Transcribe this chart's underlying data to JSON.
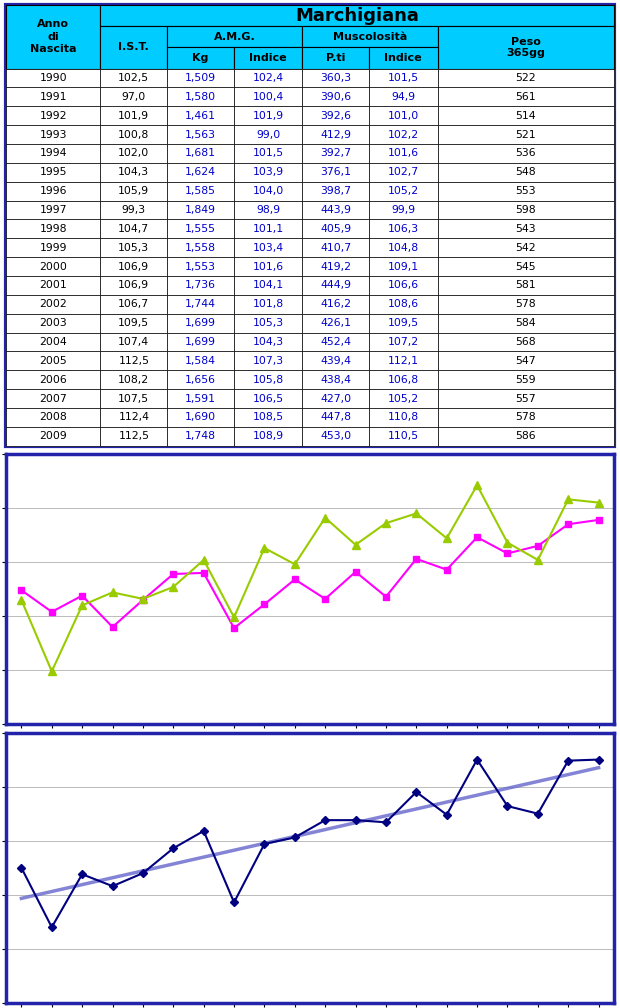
{
  "years": [
    1990,
    1991,
    1992,
    1993,
    1994,
    1995,
    1996,
    1997,
    1998,
    1999,
    2000,
    2001,
    2002,
    2003,
    2004,
    2005,
    2006,
    2007,
    2008,
    2009
  ],
  "IST": [
    102.5,
    97.0,
    101.9,
    100.8,
    102.0,
    104.3,
    105.9,
    99.3,
    104.7,
    105.3,
    106.9,
    106.9,
    106.7,
    109.5,
    107.4,
    112.5,
    108.2,
    107.5,
    112.4,
    112.5
  ],
  "AMG_kg": [
    1.509,
    1.58,
    1.461,
    1.563,
    1.681,
    1.624,
    1.585,
    1.849,
    1.555,
    1.558,
    1.553,
    1.736,
    1.744,
    1.699,
    1.699,
    1.584,
    1.656,
    1.591,
    1.69,
    1.748
  ],
  "AMG_indice": [
    102.4,
    100.4,
    101.9,
    99.0,
    101.5,
    103.9,
    104.0,
    98.9,
    101.1,
    103.4,
    101.6,
    104.1,
    101.8,
    105.3,
    104.3,
    107.3,
    105.8,
    106.5,
    108.5,
    108.9
  ],
  "Musc_pti": [
    360.3,
    390.6,
    392.6,
    412.9,
    392.7,
    376.1,
    398.7,
    443.9,
    405.9,
    410.7,
    419.2,
    444.9,
    416.2,
    426.1,
    452.4,
    439.4,
    438.4,
    427.0,
    447.8,
    453.0
  ],
  "Musc_indice": [
    101.5,
    94.9,
    101.0,
    102.2,
    101.6,
    102.7,
    105.2,
    99.9,
    106.3,
    104.8,
    109.1,
    106.6,
    108.6,
    109.5,
    107.2,
    112.1,
    106.8,
    105.2,
    110.8,
    110.5
  ],
  "Peso_365gg": [
    522,
    561,
    514,
    521,
    536,
    548,
    553,
    598,
    543,
    542,
    545,
    581,
    578,
    584,
    568,
    547,
    559,
    557,
    578,
    586
  ],
  "border_color": "#2222AA",
  "header_bg": "#00CCFF",
  "white_bg": "#FFFFFF",
  "blue_text": "#0000CC",
  "chart_border": "#2222AA",
  "amg_color": "#FF00FF",
  "musc_color": "#99CC00",
  "ist_color": "#000080",
  "trend_color": "#6666CC",
  "ylim": [
    90.0,
    115.0
  ],
  "yticks": [
    90.0,
    95.0,
    100.0,
    105.0,
    110.0,
    115.0
  ]
}
